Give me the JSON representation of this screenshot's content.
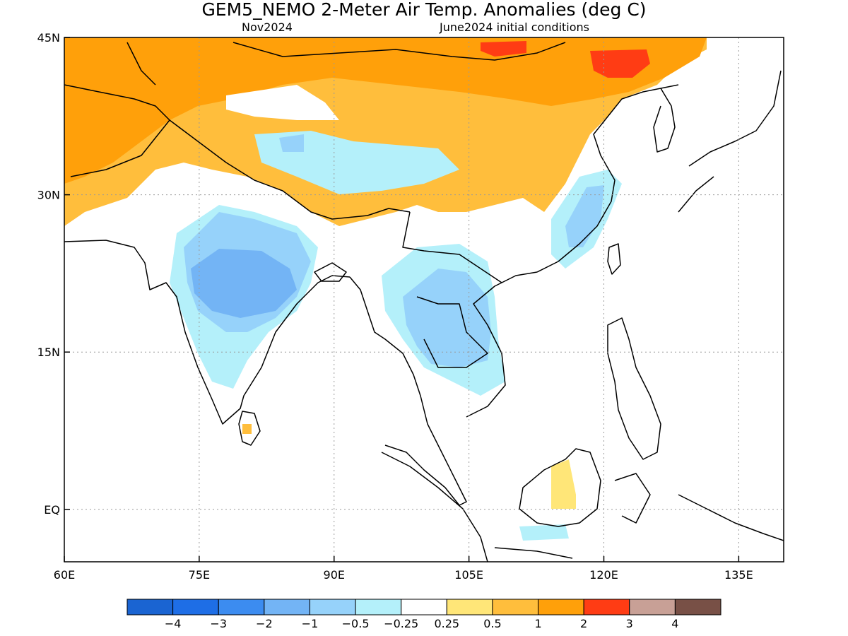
{
  "header": {
    "title": "GEM5_NEMO 2-Meter Air Temp. Anomalies (deg C)",
    "valid_month": "Nov2024",
    "initial_conditions": "June2024 initial conditions"
  },
  "map": {
    "lat_range": [
      -5,
      45
    ],
    "lon_range": [
      60,
      140
    ],
    "lat_ticks": [
      {
        "value": 45,
        "label": "45N"
      },
      {
        "value": 30,
        "label": "30N"
      },
      {
        "value": 15,
        "label": "15N"
      },
      {
        "value": 0,
        "label": "EQ"
      }
    ],
    "lon_ticks": [
      {
        "value": 60,
        "label": "60E"
      },
      {
        "value": 75,
        "label": "75E"
      },
      {
        "value": 90,
        "label": "90E"
      },
      {
        "value": 105,
        "label": "105E"
      },
      {
        "value": 120,
        "label": "120E"
      },
      {
        "value": 135,
        "label": "135E"
      }
    ],
    "grid": "dotted"
  },
  "colorbar": {
    "colors": [
      "#1a64d2",
      "#1e6ee6",
      "#3c8cf0",
      "#73b4f5",
      "#96d2fa",
      "#b4f0fa",
      "#ffffff",
      "#ffe678",
      "#ffbe3c",
      "#ffa00a",
      "#ff3c14",
      "#c8a096",
      "#785046"
    ],
    "labels": [
      "−4",
      "−3",
      "−2",
      "−1",
      "−0.5",
      "−0.25",
      "0.25",
      "0.5",
      "1",
      "2",
      "3",
      "4"
    ]
  }
}
